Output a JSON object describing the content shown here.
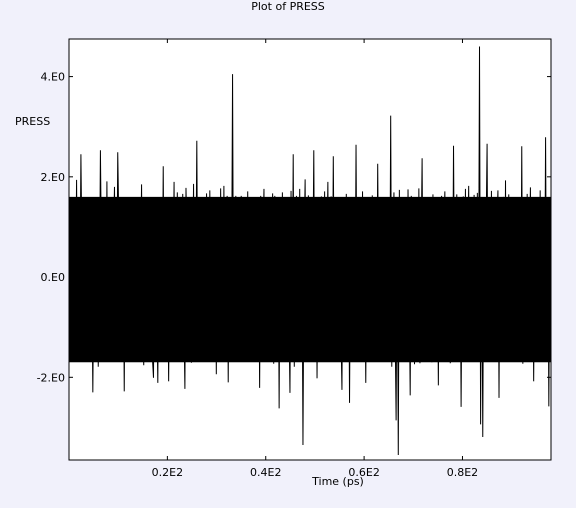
{
  "chart_data": {
    "type": "line",
    "title": "Plot of PRESS",
    "xlabel": "Time (ps)",
    "ylabel": "PRESS",
    "xlim": [
      0,
      98
    ],
    "ylim": [
      -3.65,
      4.75
    ],
    "x_ticks": [
      {
        "value": 20,
        "label": "0.2E2"
      },
      {
        "value": 40,
        "label": "0.4E2"
      },
      {
        "value": 60,
        "label": "0.6E2"
      },
      {
        "value": 80,
        "label": "0.8E2"
      }
    ],
    "y_ticks": [
      {
        "value": -2,
        "label": "-2.E0"
      },
      {
        "value": 0,
        "label": "0.E0"
      },
      {
        "value": 2,
        "label": "2.E0"
      },
      {
        "value": 4,
        "label": "4.E0"
      }
    ],
    "grid": false,
    "legend": "none",
    "colors": {
      "background": "#f1f1fb",
      "plot_background": "#ffffff",
      "series": "#000000"
    },
    "series": [
      {
        "x_start": 0,
        "x_end": 98,
        "mean": 0.1,
        "band_min": -1.7,
        "band_max": 1.6,
        "overall_max": 4.6,
        "overall_min": -3.55,
        "values": [
          0.44,
          -1.44,
          1.38,
          -1.04,
          0.6,
          -0.38,
          -0.36,
          1.94,
          -1.31,
          1.34,
          -0.52,
          2.45,
          0.39,
          0.36,
          -1.53,
          -0.88,
          -1.12,
          0.27,
          1.54,
          -1.24,
          0.88,
          0.21,
          -2.3,
          0.39,
          1.16,
          -0.58,
          1.52,
          -1.79,
          -0.72,
          2.53,
          0.42,
          -1.04,
          1.52,
          -0.67,
          -1.22,
          1.91,
          -1.41,
          -0.82,
          1.36,
          1.2,
          -1.64,
          0.74,
          1.8,
          -0.37,
          -0.89,
          2.49,
          1.09,
          -1.61,
          -1.0,
          1.11,
          0.92,
          -2.28,
          0.94,
          1.5,
          -0.68,
          1.1,
          -1.57,
          -0.21,
          1.5,
          0.69,
          -1.06,
          -1.55,
          0.79,
          1.55,
          -0.41,
          -1.48,
          0.29,
          1.85,
          -1.07,
          -1.76,
          1.58,
          1.09,
          -0.41,
          -0.33,
          -1.03,
          1.57,
          0.78,
          -1.61,
          -2.01,
          1.59,
          0.99,
          -0.59,
          -2.11,
          1.56,
          0.11,
          0.56,
          -0.92,
          2.21,
          -1.26,
          -0.94,
          1.54,
          0.25,
          -2.08,
          0.7,
          1.23,
          -1.54,
          -0.07,
          1.9,
          -1.44,
          -0.47,
          1.69,
          -1.5,
          0.47,
          1.42,
          -1.3,
          1.66,
          -0.74,
          -2.23,
          1.78,
          0.76,
          -1.35,
          0.7,
          1.21,
          -1.71,
          -0.05,
          1.86,
          -1.49,
          -0.39,
          2.72,
          -1.08,
          -1.24,
          1.53,
          -0.55,
          -0.71,
          1.32,
          0.47,
          -1.69,
          1.67,
          -0.22,
          -1.58,
          1.73,
          -0.54,
          -1.38,
          1.34,
          -0.09,
          1.25,
          -1.94,
          0.93,
          1.05,
          -1.39,
          1.77,
          -0.65,
          -1.16,
          1.82,
          -1.51,
          0.19,
          1.62,
          -2.1,
          1.15,
          0.57,
          -0.63,
          4.05,
          -1.68,
          -1.07,
          1.62,
          0.74,
          -1.6,
          1.16,
          -1.01,
          1.62,
          -1.49,
          0.49,
          1.59,
          -1.26,
          -0.61,
          1.71,
          -1.47,
          0.33,
          1.39,
          -1.59,
          1.28,
          -0.43,
          -1.59,
          1.58,
          -1.24,
          1.1,
          -2.21,
          1.62,
          -0.82,
          0.73,
          1.76,
          -1.62,
          -0.55,
          1.48,
          -1.08,
          1.26,
          -1.64,
          0.47,
          1.67,
          -1.73,
          1.62,
          -1.05,
          -0.54,
          1.51,
          -2.62,
          1.58,
          -1.02,
          1.69,
          -0.1,
          -1.4,
          1.25,
          0.85,
          -1.53,
          -0.75,
          -2.31,
          1.72,
          -1.08,
          2.45,
          -1.79,
          0.62,
          1.62,
          -1.23,
          -0.61,
          1.76,
          -1.4,
          1.09,
          -3.35,
          0.57,
          1.95,
          -1.53,
          0.58,
          1.63,
          -1.12,
          -1.03,
          1.51,
          -0.2,
          2.53,
          -1.62,
          1.02,
          -2.02,
          0.82,
          1.49,
          -1.69,
          1.61,
          -0.43,
          -1.13,
          1.71,
          -1.56,
          0.42,
          1.9,
          -1.19,
          -0.57,
          1.61,
          -1.38,
          2.41,
          -0.64,
          -1.47,
          1.42,
          0.66,
          -1.67,
          1.13,
          -1.01,
          -2.25,
          1.56,
          0.36,
          -1.36,
          1.66,
          -0.86,
          1.49,
          -2.51,
          1.09,
          0.79,
          -1.57,
          1.4,
          -1.28,
          2.64,
          -0.94,
          -1.36,
          1.52,
          0.67,
          -1.51,
          1.71,
          -1.04,
          0.24,
          -2.11,
          1.49,
          -1.31,
          0.91,
          1.44,
          -1.32,
          1.63,
          -1.61,
          0.18,
          1.55,
          -1.42,
          2.26,
          -0.52,
          -1.67,
          1.37,
          1.24,
          -1.64,
          0.48,
          1.51,
          -1.17,
          -1.07,
          1.48,
          -1.39,
          3.22,
          -1.79,
          0.75,
          1.69,
          -0.81,
          -2.86,
          1.31,
          -3.55,
          1.74,
          -1.38,
          0.66,
          1.54,
          -1.56,
          1.21,
          -0.97,
          -1.43,
          1.75,
          -0.13,
          -2.36,
          1.62,
          -1.22,
          1.24,
          -1.74,
          0.61,
          1.39,
          -1.24,
          1.77,
          -1.72,
          0.42,
          2.37,
          -1.34,
          -0.61,
          1.59,
          -1.57,
          1.04,
          -1.32,
          1.42,
          0.39,
          -1.7,
          1.65,
          -1.05,
          -1.19,
          1.53,
          0.91,
          -2.16,
          1.44,
          -0.55,
          1.62,
          -1.66,
          0.73,
          1.71,
          -1.06,
          -1.27,
          1.48,
          0.62,
          -1.72,
          1.35,
          -1.29,
          2.62,
          -0.84,
          -1.48,
          1.65,
          0.34,
          -1.63,
          1.27,
          -2.59,
          0.67,
          1.61,
          -1.42,
          1.76,
          -1.25,
          0.36,
          1.82,
          -1.6,
          0.92,
          1.27,
          -1.57,
          1.64,
          -0.85,
          -1.41,
          1.68,
          -1.28,
          4.6,
          -2.94,
          1.37,
          -3.19,
          1.49,
          -1.51,
          0.77,
          2.66,
          -1.68,
          1.1,
          -1.3,
          1.72,
          -0.69,
          -1.54,
          1.59,
          -1.39,
          0.96,
          1.73,
          -2.41,
          1.46,
          -0.73,
          -1.48,
          1.6,
          -1.22,
          1.93,
          -1.58,
          0.53,
          1.65,
          -1.31,
          1.14,
          -1.55,
          -0.39,
          1.47,
          -1.68,
          1.12,
          1.38,
          -1.5,
          0.89,
          -1.58,
          2.61,
          -1.73,
          1.59,
          -1.16,
          -0.98,
          1.66,
          -1.38,
          0.58,
          1.79,
          -1.45,
          1.28,
          -2.08,
          0.95,
          1.56,
          -1.68,
          1.42,
          -1.12,
          1.73,
          -1.64,
          0.78,
          1.53,
          -1.27,
          2.79,
          -1.55,
          1.46,
          -2.58,
          1.21,
          -1.36
        ]
      }
    ]
  }
}
